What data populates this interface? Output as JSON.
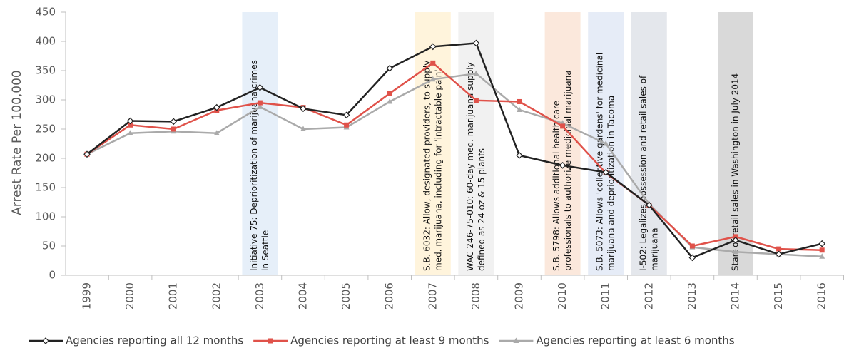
{
  "chart_data": {
    "type": "line",
    "y_label": "Arrest Rate Per 100,000",
    "categories": [
      "1999",
      "2000",
      "2001",
      "2002",
      "2003",
      "2004",
      "2005",
      "2006",
      "2007",
      "2008",
      "2009",
      "2010",
      "2011",
      "2012",
      "2013",
      "2014",
      "2015",
      "2016"
    ],
    "ylim": [
      0,
      450
    ],
    "yticks": [
      0,
      50,
      100,
      150,
      200,
      250,
      300,
      350,
      400,
      450
    ],
    "series": [
      {
        "name": "Agencies reporting all 12 months",
        "color": "#222222",
        "marker": "diamond",
        "values": [
          207,
          264,
          263,
          287,
          321,
          285,
          274,
          354,
          391,
          397,
          205,
          188,
          176,
          120,
          30,
          60,
          36,
          54
        ]
      },
      {
        "name": "Agencies reporting at least 9 months",
        "color": "#e0524a",
        "marker": "square",
        "values": [
          207,
          257,
          250,
          282,
          295,
          287,
          257,
          311,
          363,
          299,
          297,
          255,
          175,
          120,
          50,
          66,
          45,
          43
        ]
      },
      {
        "name": "Agencies reporting at least 6 months",
        "color": "#aaaaaa",
        "marker": "triangle",
        "values": [
          207,
          243,
          246,
          243,
          288,
          250,
          253,
          297,
          335,
          345,
          283,
          260,
          225,
          122,
          48,
          40,
          36,
          32
        ]
      }
    ],
    "annotations": [
      {
        "at": "2003",
        "color": "#e6eff9",
        "lines": [
          "Initiative 75: Deprioritization of marijuana crimes",
          "in Seattle"
        ]
      },
      {
        "at": "2007",
        "color": "#fff4dc",
        "lines": [
          "S.B. 6032: Allow, designated providers, to supply",
          "med. marijuana, including for 'intractable pain'"
        ]
      },
      {
        "at": "2008",
        "color": "#f1f1f1",
        "lines": [
          "WAC 246-75-010:  60-day med. marijuana supply",
          "defined as 24 oz & 15 plants"
        ]
      },
      {
        "at": "2010",
        "color": "#fbe8dc",
        "lines": [
          "S.B. 5798: Allows additional health care",
          "professionals to authorize medicinal marijuana"
        ]
      },
      {
        "at": "2011",
        "color": "#e6ecf7",
        "lines": [
          "S.B. 5073: Allows 'collective gardens' for medicinal",
          "marijuana and deprioritization in Tacoma"
        ]
      },
      {
        "at": "2012",
        "color": "#e4e7ec",
        "lines": [
          "I-502: Legalizes possession and retail sales of",
          "marijuana"
        ]
      },
      {
        "at": "2014",
        "color": "#d9d9d9",
        "lines": [
          "Start of retail sales in Washington in July 2014"
        ]
      }
    ]
  }
}
